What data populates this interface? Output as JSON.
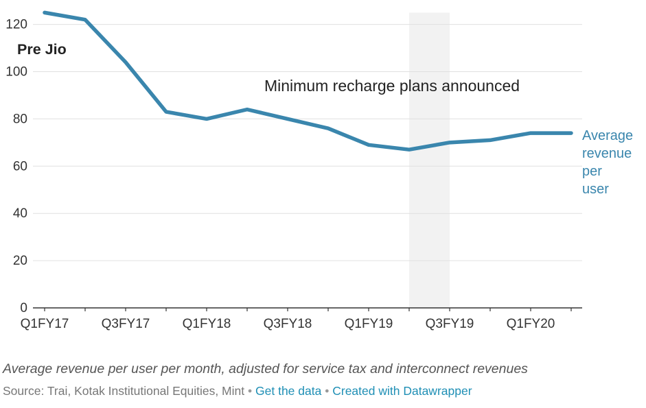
{
  "chart_data": {
    "type": "line",
    "categories": [
      "Q1FY17",
      "Q2FY17",
      "Q3FY17",
      "Q4FY17",
      "Q1FY18",
      "Q2FY18",
      "Q3FY18",
      "Q4FY18",
      "Q1FY19",
      "Q2FY19",
      "Q3FY19",
      "Q4FY19",
      "Q1FY20",
      "Q2FY20"
    ],
    "x_tick_labels": [
      "Q1FY17",
      "Q3FY17",
      "Q1FY18",
      "Q3FY18",
      "Q1FY19",
      "Q3FY19",
      "Q1FY20"
    ],
    "series": [
      {
        "name": "Average revenue per user",
        "values": [
          125,
          122,
          104,
          83,
          80,
          84,
          80,
          76,
          69,
          67,
          70,
          71,
          74,
          74
        ],
        "color": "#3a86ad"
      }
    ],
    "series_label_lines": [
      "Average",
      "revenue",
      "per",
      "user"
    ],
    "ylim": [
      0,
      125
    ],
    "y_ticks": [
      0,
      20,
      40,
      60,
      80,
      100,
      120
    ],
    "grid": true,
    "shaded_range": {
      "from": "Q2FY19",
      "to": "Q3FY19",
      "color": "#f2f2f2"
    },
    "annotations": {
      "pre_jio": "Pre Jio",
      "min_recharge": "Minimum recharge plans announced"
    },
    "title": "",
    "xlabel": "",
    "ylabel": ""
  },
  "notes": {
    "description": "Average revenue per user per month, adjusted for service tax and interconnect revenues",
    "source": "Source: Trai, Kotak Institutional Equities, Mint",
    "separator": "•",
    "get_data_link": "Get the data",
    "datawrapper_link": "Created with Datawrapper"
  }
}
